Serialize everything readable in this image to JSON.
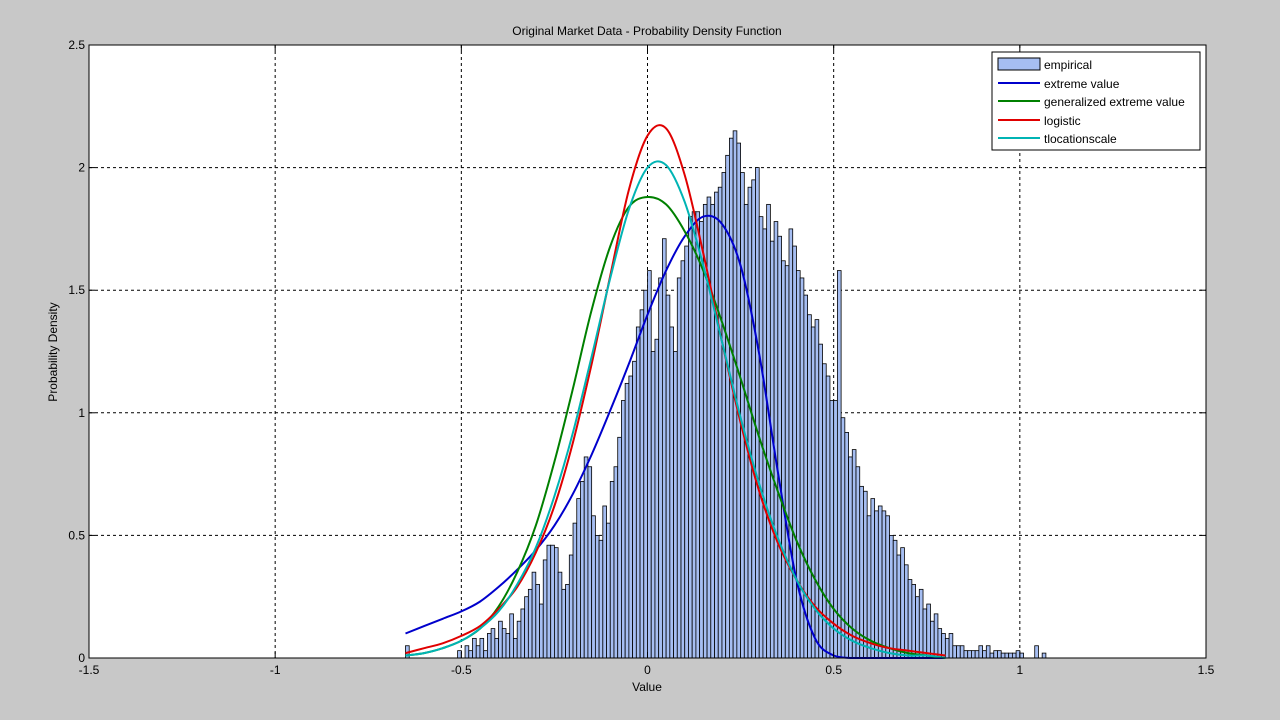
{
  "chart_data": {
    "type": "histogram+line",
    "title": "Original Market Data - Probability Density Function",
    "xlabel": "Value",
    "ylabel": "Probability Density",
    "xlim": [
      -1.5,
      1.5
    ],
    "ylim": [
      0,
      2.5
    ],
    "xticks": [
      -1.5,
      -1,
      -0.5,
      0,
      0.5,
      1,
      1.5
    ],
    "xtick_labels": [
      "-1.5",
      "-1",
      "-0.5",
      "0",
      "0.5",
      "1",
      "1.5"
    ],
    "yticks": [
      0,
      0.5,
      1,
      1.5,
      2,
      2.5
    ],
    "ytick_labels": [
      "0",
      "0.5",
      "1",
      "1.5",
      "2",
      "2.5"
    ],
    "grid": true,
    "legend_position": "top-right",
    "legend": [
      "empirical",
      "extreme value",
      "generalized extreme value",
      "logistic",
      "tlocationscale"
    ],
    "histogram": {
      "name": "empirical",
      "color": "#a6bef2",
      "edge_color": "#000000",
      "bin_start": -0.65,
      "bin_width": 0.01,
      "values": [
        0.05,
        0,
        0,
        0,
        0,
        0,
        0,
        0,
        0,
        0,
        0,
        0,
        0,
        0,
        0.03,
        0,
        0.05,
        0.03,
        0.08,
        0.05,
        0.08,
        0.03,
        0.1,
        0.12,
        0.08,
        0.15,
        0.12,
        0.1,
        0.18,
        0.08,
        0.15,
        0.2,
        0.25,
        0.28,
        0.35,
        0.3,
        0.22,
        0.4,
        0.46,
        0.46,
        0.45,
        0.35,
        0.28,
        0.3,
        0.42,
        0.55,
        0.65,
        0.72,
        0.82,
        0.78,
        0.58,
        0.5,
        0.48,
        0.62,
        0.55,
        0.72,
        0.78,
        0.9,
        1.05,
        1.12,
        1.15,
        1.21,
        1.35,
        1.42,
        1.5,
        1.58,
        1.25,
        1.3,
        1.55,
        1.71,
        1.48,
        1.35,
        1.25,
        1.55,
        1.62,
        1.68,
        1.8,
        1.82,
        1.82,
        1.78,
        1.85,
        1.88,
        1.85,
        1.9,
        1.92,
        1.98,
        2.05,
        2.12,
        2.15,
        2.1,
        1.98,
        1.85,
        1.92,
        1.95,
        2.0,
        1.8,
        1.75,
        1.85,
        1.7,
        1.78,
        1.72,
        1.62,
        1.6,
        1.75,
        1.68,
        1.58,
        1.55,
        1.48,
        1.4,
        1.35,
        1.38,
        1.28,
        1.2,
        1.15,
        1.05,
        1.05,
        1.58,
        0.98,
        0.92,
        0.82,
        0.85,
        0.78,
        0.7,
        0.68,
        0.58,
        0.65,
        0.6,
        0.62,
        0.6,
        0.58,
        0.5,
        0.48,
        0.42,
        0.45,
        0.38,
        0.32,
        0.3,
        0.25,
        0.28,
        0.2,
        0.22,
        0.15,
        0.18,
        0.12,
        0.1,
        0.08,
        0.1,
        0.05,
        0.05,
        0.05,
        0.03,
        0.03,
        0.03,
        0.03,
        0.05,
        0.03,
        0.05,
        0.02,
        0.03,
        0.03,
        0.02,
        0.02,
        0.02,
        0.02,
        0.03,
        0.02,
        0,
        0,
        0,
        0.05,
        0,
        0.02,
        0,
        0,
        0,
        0,
        0,
        0,
        0,
        0,
        0,
        0,
        0,
        0,
        0,
        0
      ]
    },
    "series": [
      {
        "name": "extreme value",
        "color": "#0000cc",
        "x": [
          -0.65,
          -0.6,
          -0.55,
          -0.5,
          -0.45,
          -0.4,
          -0.35,
          -0.3,
          -0.25,
          -0.2,
          -0.15,
          -0.1,
          -0.05,
          0,
          0.05,
          0.1,
          0.15,
          0.2,
          0.25,
          0.3,
          0.35,
          0.4,
          0.45,
          0.5,
          0.55,
          0.6,
          0.65,
          0.7,
          0.75,
          0.8
        ],
        "y": [
          0.1,
          0.13,
          0.16,
          0.19,
          0.23,
          0.29,
          0.36,
          0.44,
          0.54,
          0.67,
          0.83,
          1.01,
          1.2,
          1.4,
          1.58,
          1.72,
          1.8,
          1.77,
          1.6,
          1.24,
          0.76,
          0.32,
          0.08,
          0.01,
          0,
          0,
          0,
          0,
          0,
          0
        ]
      },
      {
        "name": "generalized extreme value",
        "color": "#008000",
        "x": [
          -0.65,
          -0.6,
          -0.55,
          -0.5,
          -0.45,
          -0.4,
          -0.35,
          -0.3,
          -0.25,
          -0.2,
          -0.15,
          -0.1,
          -0.05,
          0,
          0.05,
          0.1,
          0.15,
          0.2,
          0.25,
          0.3,
          0.35,
          0.4,
          0.45,
          0.5,
          0.55,
          0.6,
          0.65,
          0.7,
          0.75,
          0.8
        ],
        "y": [
          0.01,
          0.02,
          0.04,
          0.07,
          0.12,
          0.21,
          0.35,
          0.54,
          0.8,
          1.1,
          1.42,
          1.68,
          1.84,
          1.88,
          1.85,
          1.74,
          1.58,
          1.37,
          1.14,
          0.9,
          0.68,
          0.48,
          0.32,
          0.2,
          0.12,
          0.07,
          0.04,
          0.02,
          0.01,
          0
        ]
      },
      {
        "name": "logistic",
        "color": "#e00000",
        "x": [
          -0.65,
          -0.6,
          -0.55,
          -0.5,
          -0.45,
          -0.4,
          -0.35,
          -0.3,
          -0.25,
          -0.2,
          -0.15,
          -0.1,
          -0.05,
          0,
          0.05,
          0.1,
          0.15,
          0.2,
          0.25,
          0.3,
          0.35,
          0.4,
          0.45,
          0.5,
          0.55,
          0.6,
          0.65,
          0.7,
          0.75,
          0.8
        ],
        "y": [
          0.02,
          0.04,
          0.06,
          0.09,
          0.13,
          0.2,
          0.29,
          0.43,
          0.62,
          0.88,
          1.2,
          1.56,
          1.91,
          2.13,
          2.16,
          1.97,
          1.65,
          1.29,
          0.96,
          0.68,
          0.47,
          0.32,
          0.21,
          0.14,
          0.09,
          0.06,
          0.04,
          0.03,
          0.02,
          0.01
        ]
      },
      {
        "name": "tlocationscale",
        "color": "#00b4b4",
        "x": [
          -0.65,
          -0.6,
          -0.55,
          -0.5,
          -0.45,
          -0.4,
          -0.35,
          -0.3,
          -0.25,
          -0.2,
          -0.15,
          -0.1,
          -0.05,
          0,
          0.05,
          0.1,
          0.15,
          0.2,
          0.25,
          0.3,
          0.35,
          0.4,
          0.45,
          0.5,
          0.55,
          0.6,
          0.65,
          0.7,
          0.75,
          0.8
        ],
        "y": [
          0.01,
          0.02,
          0.04,
          0.07,
          0.12,
          0.19,
          0.3,
          0.45,
          0.66,
          0.92,
          1.23,
          1.55,
          1.83,
          2.0,
          2.01,
          1.86,
          1.6,
          1.29,
          0.98,
          0.71,
          0.49,
          0.32,
          0.2,
          0.12,
          0.07,
          0.04,
          0.02,
          0.01,
          0.01,
          0
        ]
      }
    ]
  }
}
